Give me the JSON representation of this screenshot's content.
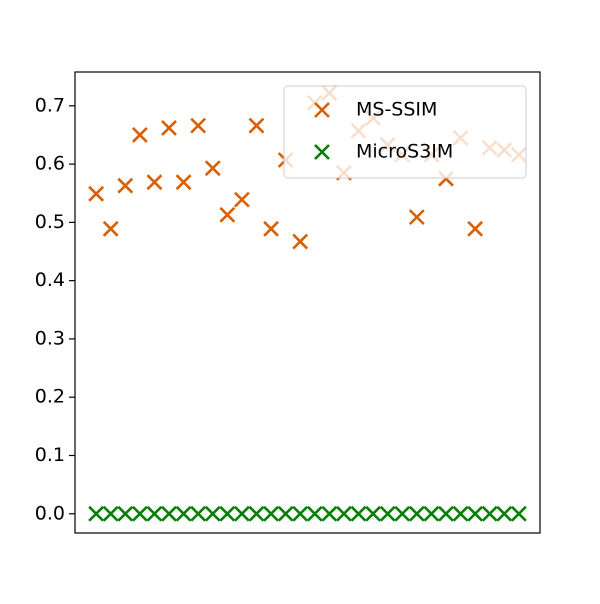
{
  "chart_data": {
    "type": "scatter",
    "x": [
      0,
      1,
      2,
      3,
      4,
      5,
      6,
      7,
      8,
      9,
      10,
      11,
      12,
      13,
      14,
      15,
      16,
      17,
      18,
      19,
      20,
      21,
      22,
      23,
      24,
      25,
      26,
      27,
      28,
      29
    ],
    "series": [
      {
        "name": "MS-SSIM",
        "color": "#d95f02",
        "values": [
          0.549,
          0.489,
          0.563,
          0.65,
          0.569,
          0.662,
          0.569,
          0.666,
          0.593,
          0.513,
          0.539,
          0.666,
          0.489,
          0.607,
          0.467,
          0.705,
          0.722,
          0.585,
          0.657,
          0.679,
          0.633,
          0.616,
          0.509,
          0.616,
          0.575,
          0.645,
          0.489,
          0.628,
          0.624,
          0.616
        ]
      },
      {
        "name": "MicroS3IM",
        "color": "#008000",
        "values": [
          0,
          0,
          0,
          0,
          0,
          0,
          0,
          0,
          0,
          0,
          0,
          0,
          0,
          0,
          0,
          0,
          0,
          0,
          0,
          0,
          0,
          0,
          0,
          0,
          0,
          0,
          0,
          0,
          0,
          0
        ]
      }
    ],
    "xlim": [
      -1.45,
      30.45
    ],
    "ylim": [
      -0.033,
      0.758
    ],
    "yticks": [
      {
        "value": 0,
        "label": "0.0"
      },
      0.1,
      0.2,
      0.3,
      0.4,
      0.5,
      0.6,
      0.7
    ],
    "grid": false,
    "legend": "upper right"
  }
}
